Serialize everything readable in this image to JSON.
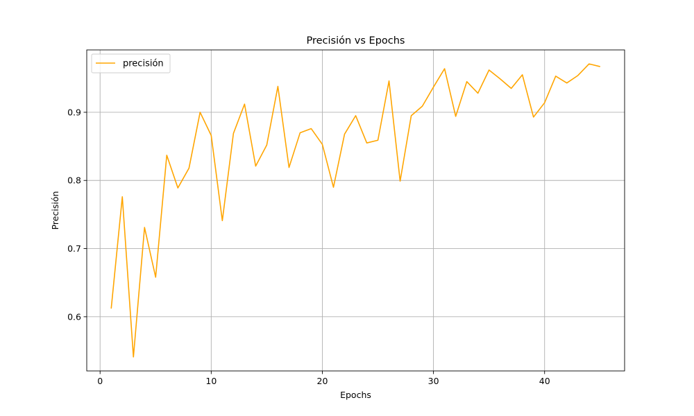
{
  "chart_data": {
    "type": "line",
    "title": "Precisión vs Epochs",
    "xlabel": "Epochs",
    "ylabel": "Precisión",
    "xlim": [
      -1.2,
      47.2
    ],
    "ylim": [
      0.5205,
      0.9915
    ],
    "xticks": [
      0,
      10,
      20,
      30,
      40
    ],
    "yticks": [
      0.6,
      0.7,
      0.8,
      0.9
    ],
    "ytick_labels": [
      "0.6",
      "0.7",
      "0.8",
      "0.9"
    ],
    "xtick_labels": [
      "0",
      "10",
      "20",
      "30",
      "40"
    ],
    "grid": true,
    "legend": "upper left",
    "x": [
      1,
      2,
      3,
      4,
      5,
      6,
      7,
      8,
      9,
      10,
      11,
      12,
      13,
      14,
      15,
      16,
      17,
      18,
      19,
      20,
      21,
      22,
      23,
      24,
      25,
      26,
      27,
      28,
      29,
      30,
      31,
      32,
      33,
      34,
      35,
      36,
      37,
      38,
      39,
      40,
      41,
      42,
      43,
      44,
      45
    ],
    "series": [
      {
        "name": "precisión",
        "color": "#ffa500",
        "values": [
          0.612,
          0.776,
          0.541,
          0.731,
          0.658,
          0.837,
          0.789,
          0.818,
          0.9,
          0.866,
          0.741,
          0.869,
          0.912,
          0.821,
          0.852,
          0.938,
          0.819,
          0.87,
          0.876,
          0.853,
          0.79,
          0.868,
          0.895,
          0.855,
          0.859,
          0.946,
          0.799,
          0.895,
          0.909,
          0.937,
          0.964,
          0.894,
          0.945,
          0.928,
          0.962,
          0.949,
          0.935,
          0.955,
          0.893,
          0.914,
          0.953,
          0.943,
          0.954,
          0.971,
          0.967
        ]
      }
    ]
  }
}
